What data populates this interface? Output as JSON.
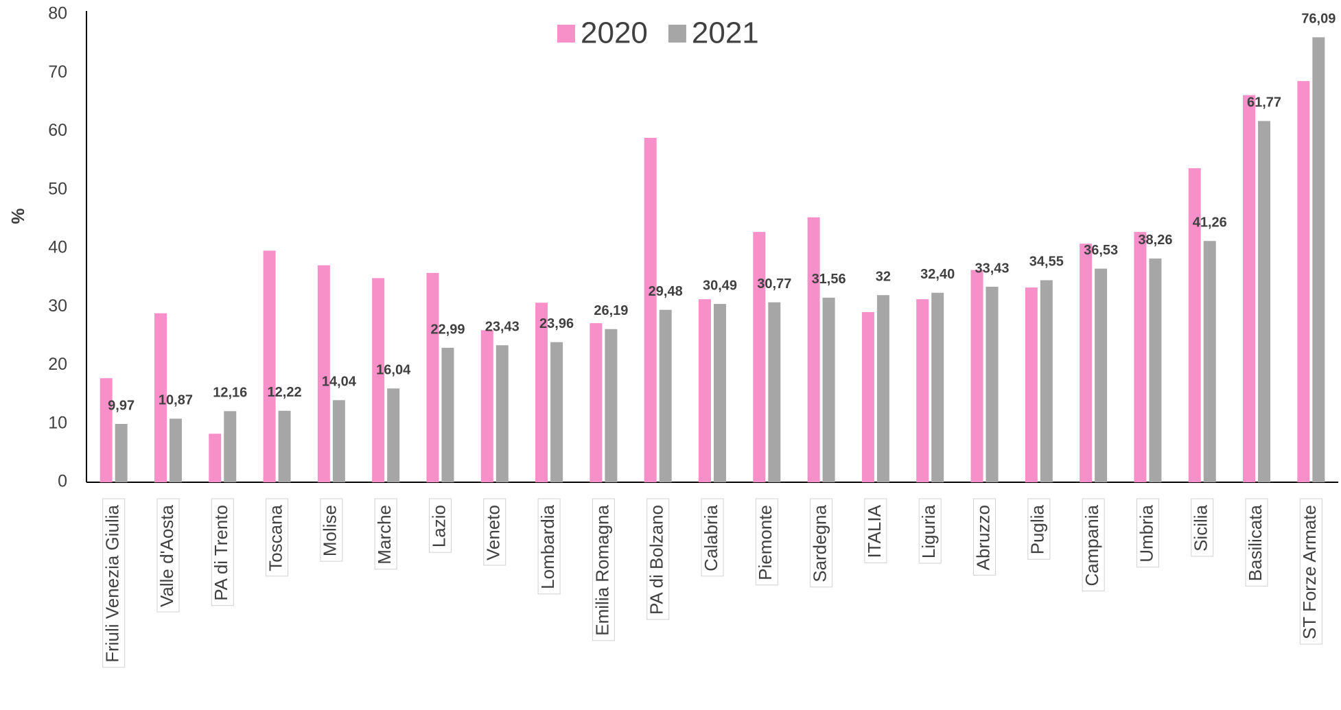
{
  "chart_data": {
    "type": "bar",
    "y_label": "%",
    "categories": [
      "Friuli Venezia Giulia",
      "Valle d'Aosta",
      "PA di Trento",
      "Toscana",
      "Molise",
      "Marche",
      "Lazio",
      "Veneto",
      "Lombardia",
      "Emilia Romagna",
      "PA di Bolzano",
      "Calabria",
      "Piemonte",
      "Sardegna",
      "ITALIA",
      "Liguria",
      "Abruzzo",
      "Puglia",
      "Campania",
      "Umbria",
      "Sicilia",
      "Basilicata",
      "ST Forze Armate"
    ],
    "series": [
      {
        "name": "2020",
        "color": "#f78fc9",
        "values": [
          17.8,
          28.9,
          8.3,
          39.6,
          37.1,
          34.9,
          35.8,
          26.0,
          30.7,
          27.2,
          58.9,
          31.3,
          42.8,
          45.3,
          29.1,
          31.3,
          36.3,
          33.3,
          40.8,
          42.8,
          53.7,
          66.2,
          68.6
        ]
      },
      {
        "name": "2021",
        "color": "#a6a6a6",
        "values": [
          9.97,
          10.87,
          12.16,
          12.22,
          14.04,
          16.04,
          22.99,
          23.43,
          23.96,
          26.19,
          29.48,
          30.49,
          30.77,
          31.56,
          32,
          32.4,
          33.43,
          34.55,
          36.53,
          38.26,
          41.26,
          61.77,
          76.09
        ],
        "value_labels": [
          "9,97",
          "10,87",
          "12,16",
          "12,22",
          "14,04",
          "16,04",
          "22,99",
          "23,43",
          "23,96",
          "26,19",
          "29,48",
          "30,49",
          "30,77",
          "31,56",
          "32",
          "32,40",
          "33,43",
          "34,55",
          "36,53",
          "38,26",
          "41,26",
          "61,77",
          "76,09"
        ]
      }
    ],
    "ylim": [
      0,
      80
    ],
    "yticks": [
      0,
      10,
      20,
      30,
      40,
      50,
      60,
      70,
      80
    ],
    "grid": false,
    "legend": "top"
  }
}
